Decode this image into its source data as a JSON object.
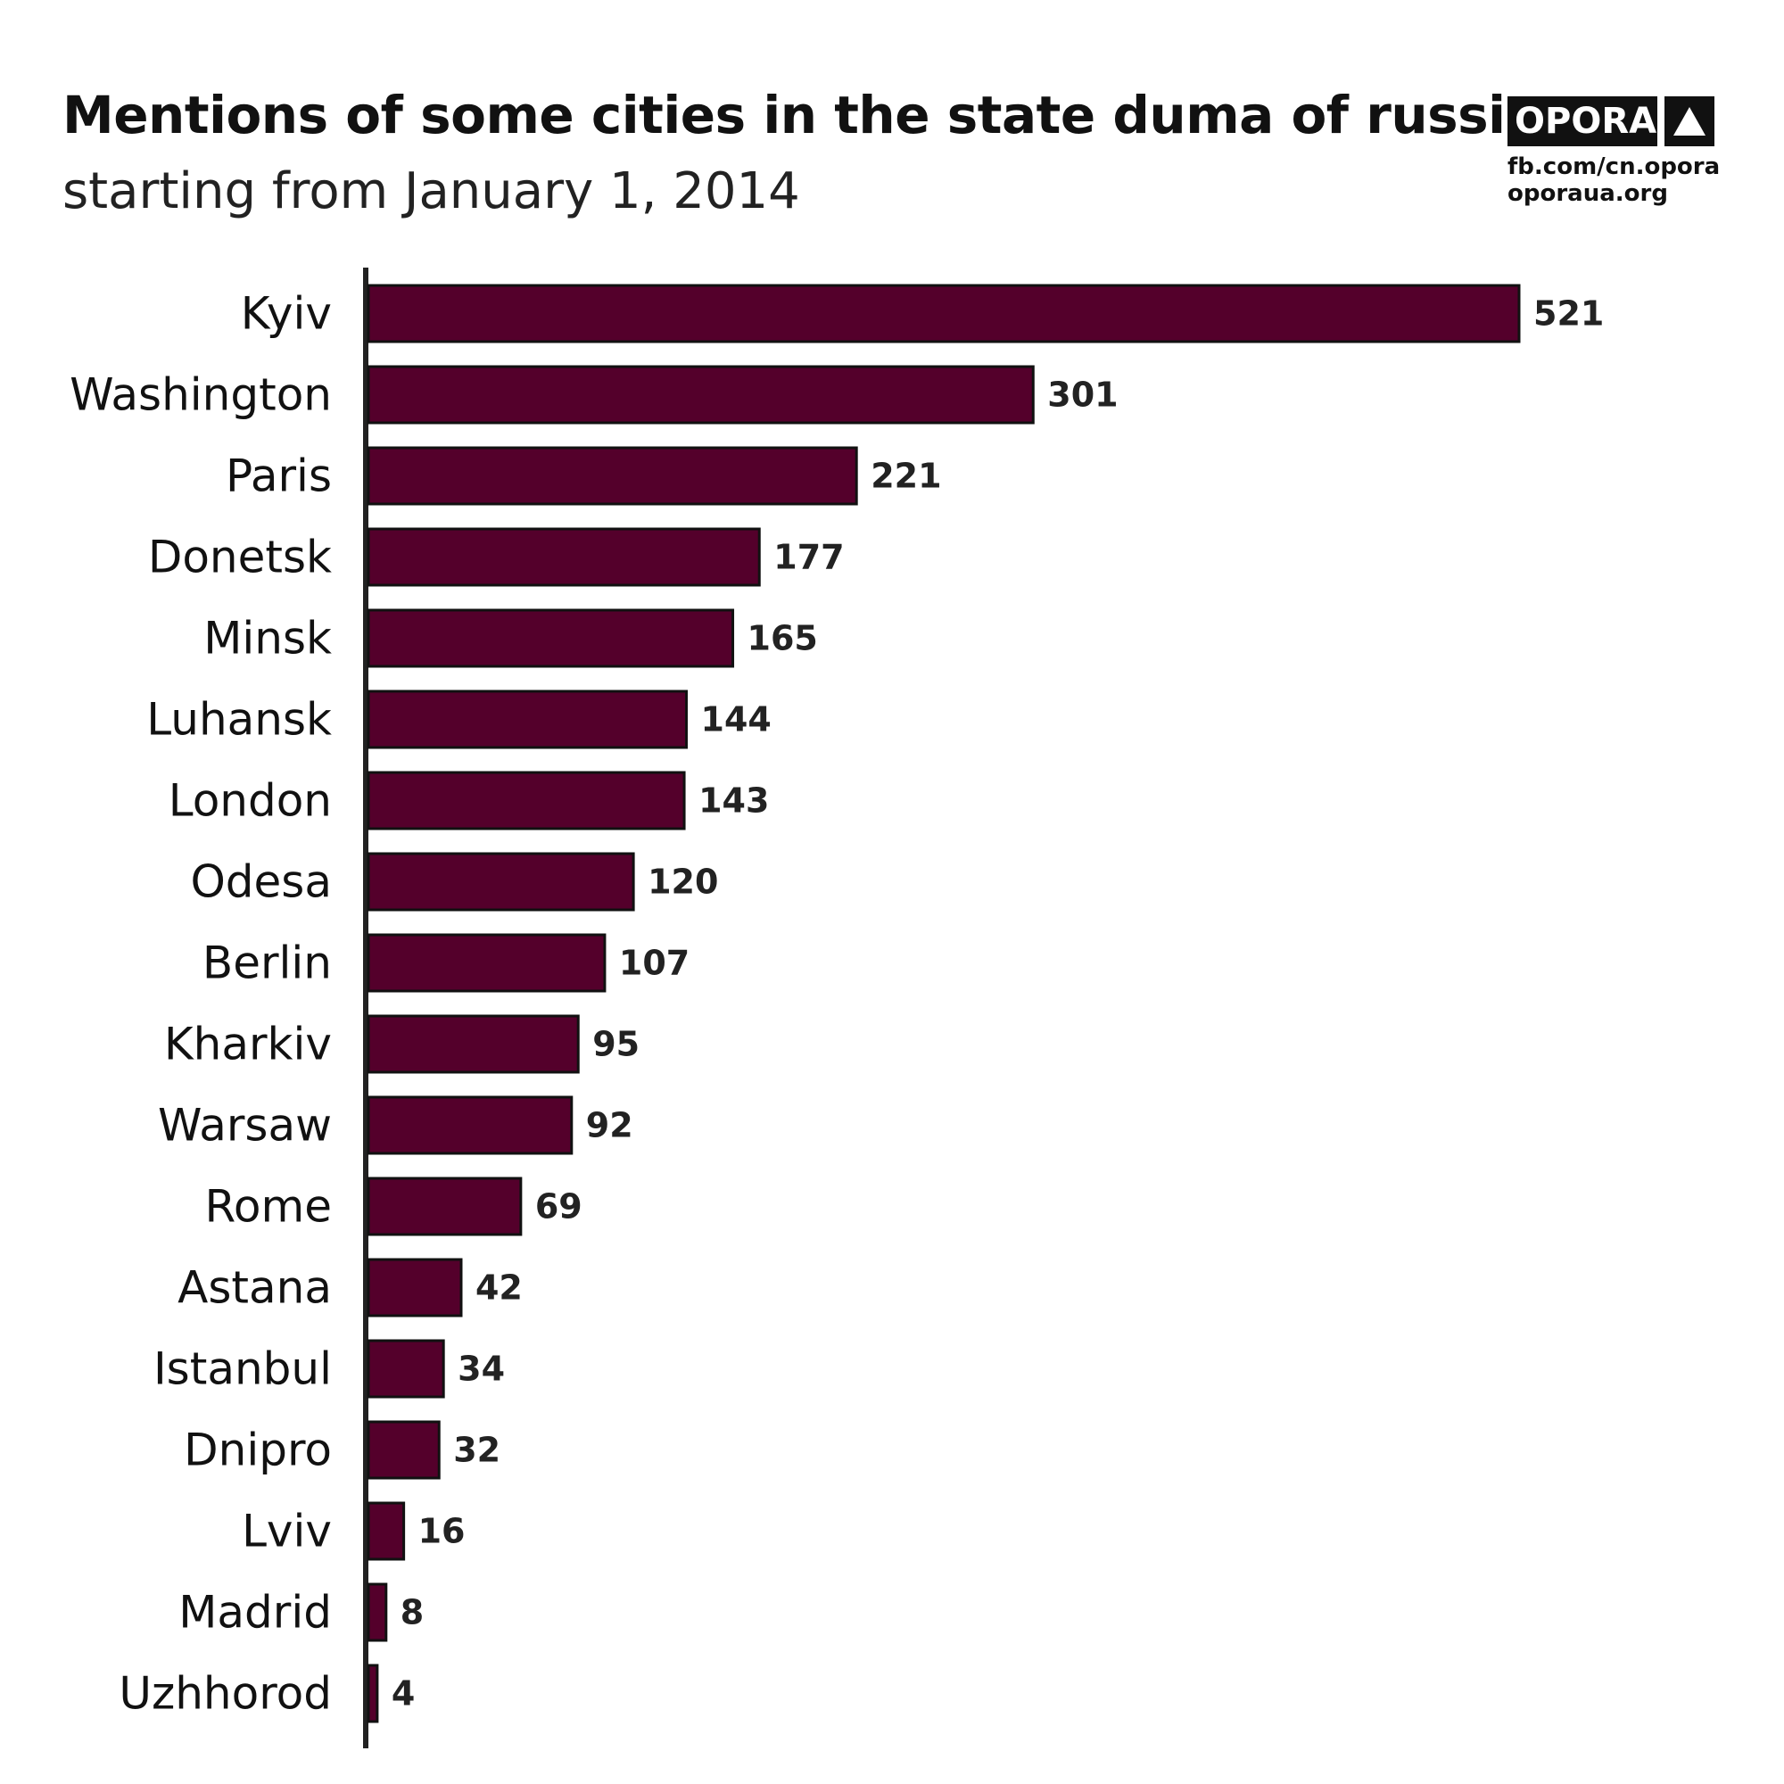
{
  "header": {
    "title": "Mentions of some cities in the state duma of russia",
    "subtitle": "starting from January 1, 2014"
  },
  "brand": {
    "name": "OPORA",
    "logo_icon": "triangle-icon",
    "link_facebook": "fb.com/cn.opora",
    "link_site": "oporaua.org"
  },
  "colors": {
    "bar_fill": "#54002b",
    "bar_stroke": "#111111",
    "axis": "#222222"
  },
  "chart_data": {
    "type": "bar",
    "orientation": "horizontal",
    "title": "Mentions of some cities in the state duma of russia",
    "subtitle": "starting from January 1, 2014",
    "categories": [
      "Kyiv",
      "Washington",
      "Paris",
      "Donetsk",
      "Minsk",
      "Luhansk",
      "London",
      "Odesa",
      "Berlin",
      "Kharkiv",
      "Warsaw",
      "Rome",
      "Astana",
      "Istanbul",
      "Dnipro",
      "Lviv",
      "Madrid",
      "Uzhhorod"
    ],
    "values": [
      521,
      301,
      221,
      177,
      165,
      144,
      143,
      120,
      107,
      95,
      92,
      69,
      42,
      34,
      32,
      16,
      8,
      4
    ],
    "value_labels": [
      "521",
      "301",
      "221",
      "177",
      "165",
      "144",
      "143",
      "120",
      "107",
      "95",
      "92",
      "69",
      "42",
      "34",
      "32",
      "16",
      "8",
      "4"
    ],
    "xlim": [
      0,
      521
    ],
    "grid": false,
    "legend": "none"
  }
}
